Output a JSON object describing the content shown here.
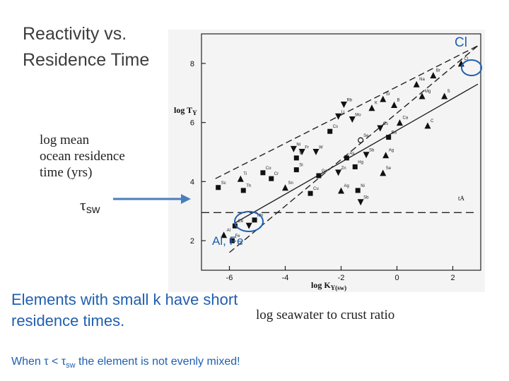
{
  "slide": {
    "title": "Reactivity vs.\nResidence Time",
    "cl_label": "Cl",
    "alfe_label": "Al, Fe",
    "tau_symbol": "τ",
    "tau_sub": "sw",
    "yaxis_desc": "log mean\nocean residence\ntime (yrs)",
    "xaxis_desc": "log seawater to crust ratio",
    "note": "Elements with small k have short residence times.",
    "footnote_pre": "When τ < τ",
    "footnote_sub": "sw",
    "footnote_post": " the element is not evenly mixed!"
  },
  "plot": {
    "ylabel": "log T",
    "ylabel_sub": "Y",
    "xlabel": "log K",
    "xlabel_sub": "Y(sw)",
    "xticks": [
      "-6",
      "-4",
      "-2",
      "0",
      "2"
    ],
    "yticks": [
      "2",
      "4",
      "6",
      "8"
    ],
    "tau_line_label": "tA"
  },
  "colors": {
    "accent": "#1f5fb0",
    "arrow": "#4a7ebb",
    "marker": "#111111"
  },
  "chart_data": {
    "type": "scatter",
    "xlim": [
      -7,
      3
    ],
    "ylim": [
      1,
      9
    ],
    "points": [
      {
        "el": "Cl",
        "x": 2.3,
        "y": 8.0,
        "m": "tri"
      },
      {
        "el": "Br",
        "x": 1.3,
        "y": 7.6,
        "m": "tri"
      },
      {
        "el": "Na",
        "x": 0.7,
        "y": 7.3,
        "m": "tri"
      },
      {
        "el": "S",
        "x": 1.7,
        "y": 6.9,
        "m": "tri"
      },
      {
        "el": "Mg",
        "x": 0.9,
        "y": 6.9,
        "m": "tri"
      },
      {
        "el": "Ca",
        "x": 0.1,
        "y": 6.0,
        "m": "tri"
      },
      {
        "el": "C",
        "x": 1.1,
        "y": 5.9,
        "m": "tri"
      },
      {
        "el": "B",
        "x": -0.1,
        "y": 6.6,
        "m": "tri"
      },
      {
        "el": "Sr",
        "x": -0.5,
        "y": 6.8,
        "m": "tri"
      },
      {
        "el": "K",
        "x": -0.9,
        "y": 6.5,
        "m": "tri"
      },
      {
        "el": "Rb",
        "x": -1.9,
        "y": 6.6,
        "m": "dtri"
      },
      {
        "el": "Li",
        "x": -2.1,
        "y": 6.2,
        "m": "dtri"
      },
      {
        "el": "Mo",
        "x": -1.6,
        "y": 6.1,
        "m": "dtri"
      },
      {
        "el": "Cs",
        "x": -0.6,
        "y": 5.8,
        "m": "dtri"
      },
      {
        "el": "Cs2",
        "x": -2.4,
        "y": 5.7,
        "m": "sq"
      },
      {
        "el": "Se",
        "x": -1.3,
        "y": 5.4,
        "m": "circ"
      },
      {
        "el": "Ba",
        "x": -0.3,
        "y": 5.5,
        "m": "sq"
      },
      {
        "el": "Ni",
        "x": -3.7,
        "y": 5.1,
        "m": "dtri"
      },
      {
        "el": "Fr",
        "x": -3.4,
        "y": 5.0,
        "m": "dtri"
      },
      {
        "el": "W",
        "x": -2.9,
        "y": 5.0,
        "m": "dtri"
      },
      {
        "el": "V",
        "x": -3.6,
        "y": 4.8,
        "m": "sq"
      },
      {
        "el": "As",
        "x": -1.8,
        "y": 4.8,
        "m": "sq"
      },
      {
        "el": "Sb",
        "x": -1.1,
        "y": 4.9,
        "m": "dtri"
      },
      {
        "el": "Ag",
        "x": -0.4,
        "y": 4.9,
        "m": "tri"
      },
      {
        "el": "Si",
        "x": -3.6,
        "y": 4.4,
        "m": "sq"
      },
      {
        "el": "Ga",
        "x": -2.8,
        "y": 4.2,
        "m": "sq"
      },
      {
        "el": "Zn",
        "x": -2.1,
        "y": 4.3,
        "m": "dtri"
      },
      {
        "el": "Hg",
        "x": -1.5,
        "y": 4.5,
        "m": "sq"
      },
      {
        "el": "Se2",
        "x": -0.5,
        "y": 4.3,
        "m": "tri"
      },
      {
        "el": "Co",
        "x": -4.8,
        "y": 4.3,
        "m": "sq"
      },
      {
        "el": "Cr",
        "x": -4.5,
        "y": 4.1,
        "m": "sq"
      },
      {
        "el": "Ti",
        "x": -5.6,
        "y": 4.1,
        "m": "tri"
      },
      {
        "el": "Sc",
        "x": -6.4,
        "y": 3.8,
        "m": "sq"
      },
      {
        "el": "Th",
        "x": -5.5,
        "y": 3.7,
        "m": "sq"
      },
      {
        "el": "Sn",
        "x": -4.0,
        "y": 3.8,
        "m": "tri"
      },
      {
        "el": "Cu",
        "x": -3.1,
        "y": 3.6,
        "m": "sq"
      },
      {
        "el": "Ag2",
        "x": -2.0,
        "y": 3.7,
        "m": "tri"
      },
      {
        "el": "Ni2",
        "x": -1.4,
        "y": 3.7,
        "m": "sq"
      },
      {
        "el": "Sb2",
        "x": -1.3,
        "y": 3.3,
        "m": "dtri"
      },
      {
        "el": "Mn",
        "x": -5.1,
        "y": 2.7,
        "m": "sq"
      },
      {
        "el": "Zr",
        "x": -5.3,
        "y": 2.5,
        "m": "dtri"
      },
      {
        "el": "Ce",
        "x": -5.8,
        "y": 2.5,
        "m": "sq"
      },
      {
        "el": "Al",
        "x": -6.2,
        "y": 2.2,
        "m": "tri"
      },
      {
        "el": "Fe",
        "x": -5.9,
        "y": 2.0,
        "m": "sq"
      }
    ]
  }
}
